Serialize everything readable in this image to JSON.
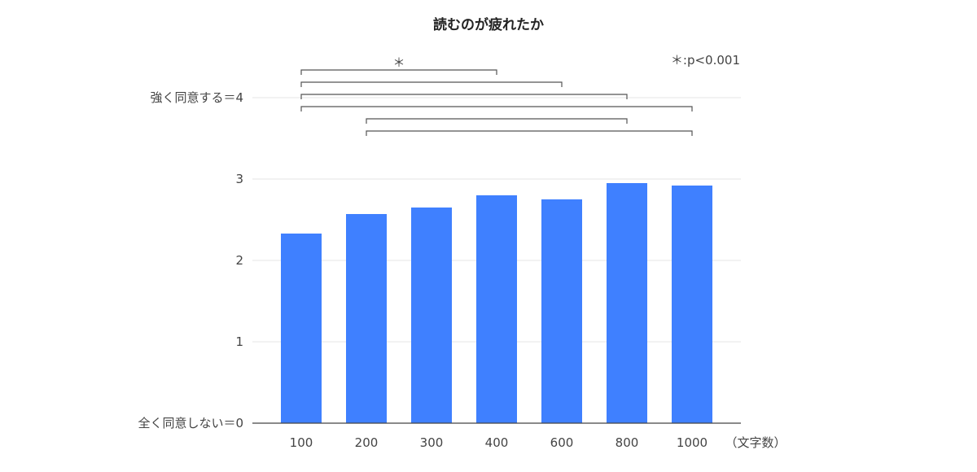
{
  "chart_data": {
    "type": "bar",
    "title": "読むのが疲れたか",
    "categories": [
      "100",
      "200",
      "300",
      "400",
      "600",
      "800",
      "1000"
    ],
    "values": [
      2.33,
      2.57,
      2.65,
      2.8,
      2.75,
      2.95,
      2.92
    ],
    "xlabel": "（文字数）",
    "ylabel": "",
    "ylim": [
      0,
      4
    ],
    "yticks": [
      {
        "value": 0,
        "label": "全く同意しない＝0"
      },
      {
        "value": 1,
        "label": "1"
      },
      {
        "value": 2,
        "label": "2"
      },
      {
        "value": 3,
        "label": "3"
      },
      {
        "value": 4,
        "label": "強く同意する＝4"
      }
    ],
    "grid": true,
    "bar_color": "#3f80ff",
    "significance": {
      "legend": "＊:p<0.001",
      "marker": "＊",
      "pairs": [
        {
          "from": "100",
          "to": "400",
          "marker": true
        },
        {
          "from": "100",
          "to": "600",
          "marker": false
        },
        {
          "from": "100",
          "to": "800",
          "marker": false
        },
        {
          "from": "100",
          "to": "1000",
          "marker": false
        },
        {
          "from": "200",
          "to": "800",
          "marker": false
        },
        {
          "from": "200",
          "to": "1000",
          "marker": false
        }
      ]
    }
  }
}
